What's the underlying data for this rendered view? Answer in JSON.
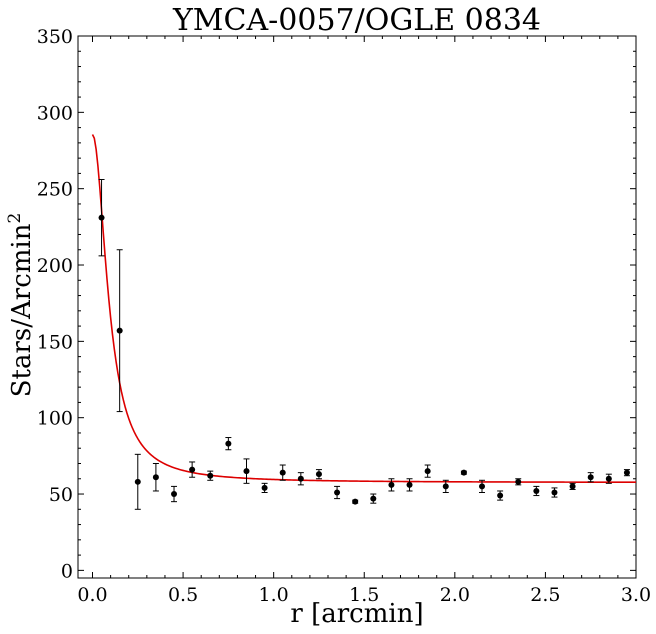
{
  "chart_data": {
    "type": "scatter",
    "title": "YMCA-0057/OGLE 0834",
    "xlabel": "r [arcmin]",
    "ylabel": "Stars/Arcmin",
    "ylabel_superscript": "2",
    "xlim": [
      -0.08,
      3.0
    ],
    "ylim": [
      -5,
      350
    ],
    "x_ticks": [
      0.0,
      0.5,
      1.0,
      1.5,
      2.0,
      2.5,
      3.0
    ],
    "x_tick_labels": [
      "0.0",
      "0.5",
      "1.0",
      "1.5",
      "2.0",
      "2.5",
      "3.0"
    ],
    "y_ticks": [
      0,
      50,
      100,
      150,
      200,
      250,
      300,
      350
    ],
    "y_tick_labels": [
      "0",
      "50",
      "100",
      "150",
      "200",
      "250",
      "300",
      "350"
    ],
    "grid": false,
    "series": [
      {
        "kind": "points_with_errorbars",
        "color": "#000000",
        "x": [
          0.05,
          0.15,
          0.25,
          0.35,
          0.45,
          0.55,
          0.65,
          0.75,
          0.85,
          0.95,
          1.05,
          1.15,
          1.25,
          1.35,
          1.45,
          1.55,
          1.65,
          1.75,
          1.85,
          1.95,
          2.05,
          2.15,
          2.25,
          2.35,
          2.45,
          2.55,
          2.65,
          2.75,
          2.85,
          2.95
        ],
        "y": [
          231,
          157,
          58,
          61,
          50,
          66,
          62,
          83,
          65,
          54,
          64,
          60,
          63,
          51,
          45,
          47,
          56,
          56,
          65,
          55,
          64,
          55,
          49,
          58,
          52,
          51,
          55,
          61,
          60,
          64
        ],
        "yerr": [
          25,
          53,
          18,
          9,
          5,
          5,
          3,
          4,
          8,
          3,
          5,
          4,
          3,
          4,
          1,
          3,
          4,
          4,
          4,
          4,
          1,
          4,
          3,
          2,
          3,
          3,
          2,
          3,
          3,
          2
        ]
      },
      {
        "kind": "fit_curve",
        "color": "#dd0000",
        "model": "king",
        "background": 57.5,
        "central_excess": 228,
        "core_radius": 0.095
      }
    ]
  }
}
